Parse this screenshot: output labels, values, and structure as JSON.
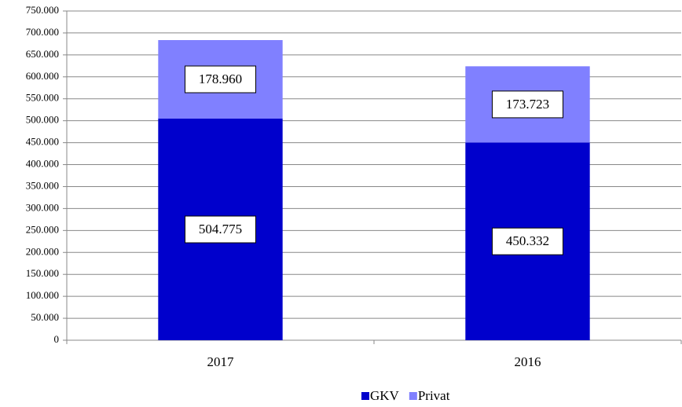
{
  "chart_data": {
    "type": "stacked_bar",
    "categories": [
      "2017",
      "2016"
    ],
    "series": [
      {
        "name": "GKV",
        "color": "#0000cc",
        "values": [
          504775,
          450332
        ],
        "value_labels": [
          "504.775",
          "450.332"
        ]
      },
      {
        "name": "Privat",
        "color": "#8080ff",
        "values": [
          178960,
          173723
        ],
        "value_labels": [
          "178.960",
          "173.723"
        ]
      }
    ],
    "ylim": [
      0,
      750000
    ],
    "yticks": [
      0,
      {
        "value": 50000,
        "label": "50.000"
      },
      {
        "value": 100000,
        "label": "100.000"
      },
      {
        "value": 150000,
        "label": "150.000"
      },
      {
        "value": 200000,
        "label": "200.000"
      },
      {
        "value": 250000,
        "label": "250.000"
      },
      {
        "value": 300000,
        "label": "300.000"
      },
      {
        "value": 350000,
        "label": "350.000"
      },
      {
        "value": 400000,
        "label": "400.000"
      },
      {
        "value": 450000,
        "label": "450.000"
      },
      {
        "value": 500000,
        "label": "500.000"
      },
      {
        "value": 550000,
        "label": "550.000"
      },
      {
        "value": 600000,
        "label": "600.000"
      },
      {
        "value": 650000,
        "label": "650.000"
      },
      {
        "value": 700000,
        "label": "700.000"
      },
      {
        "value": 750000,
        "label": "750.000"
      }
    ],
    "grid": true
  }
}
